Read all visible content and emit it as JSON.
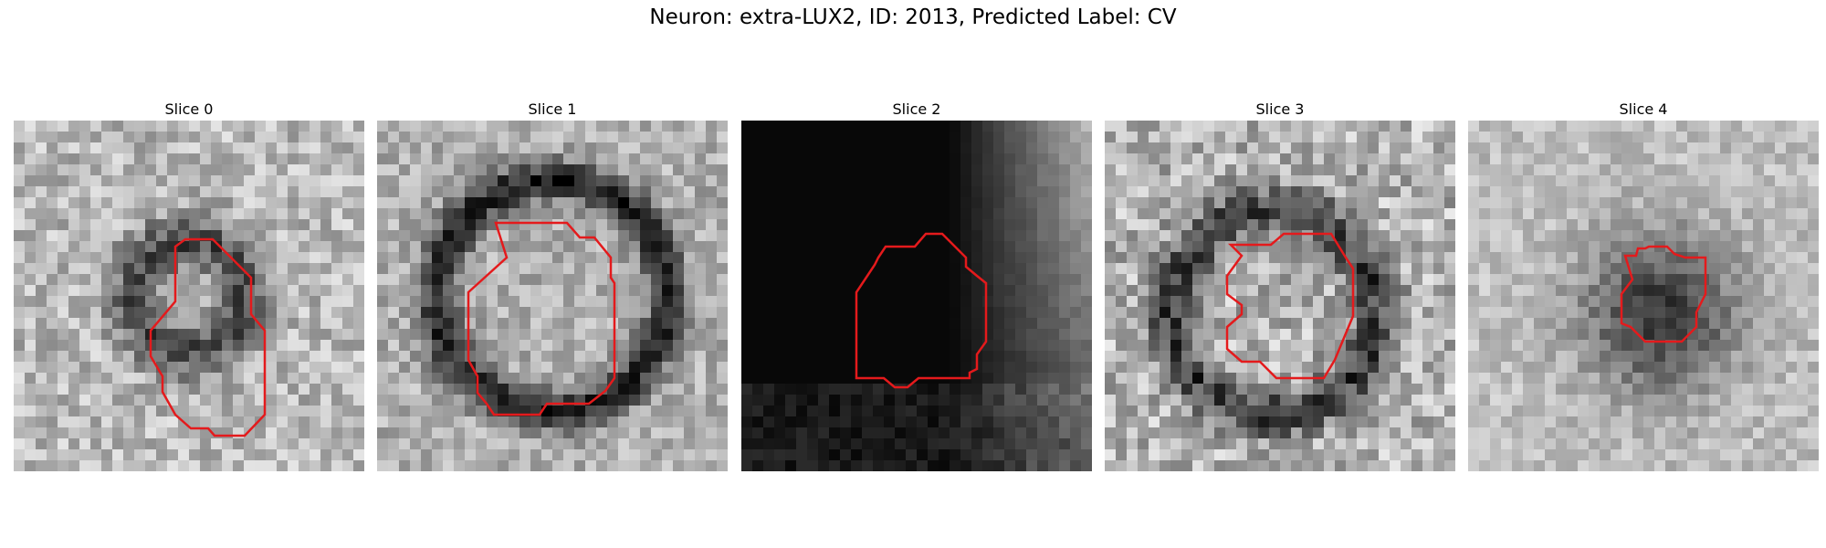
{
  "figure": {
    "title": "Neuron: extra-LUX2, ID: 2013, Predicted Label: CV"
  },
  "panels": [
    {
      "label": "Slice 0"
    },
    {
      "label": "Slice 1"
    },
    {
      "label": "Slice 2"
    },
    {
      "label": "Slice 3"
    },
    {
      "label": "Slice 4"
    }
  ],
  "colors": {
    "contour": "#e41a1c",
    "background": "#ffffff"
  }
}
